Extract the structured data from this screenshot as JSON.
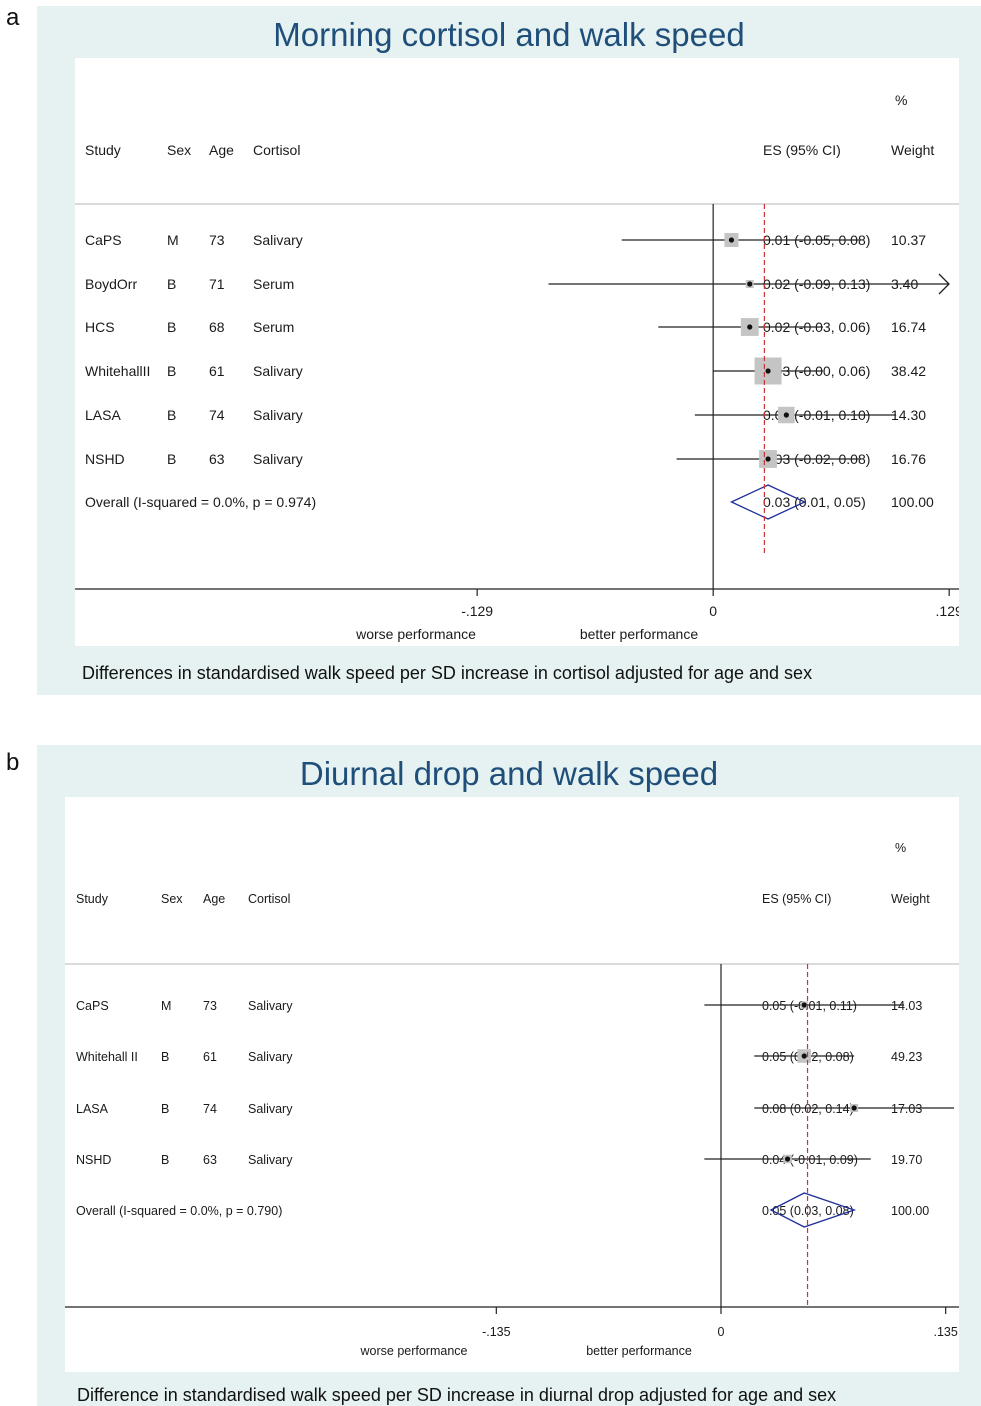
{
  "panels": [
    {
      "letter": "a",
      "title": "Morning cortisol and walk speed",
      "caption": "Differences in standardised walk speed per SD increase in cortisol adjusted for age and sex"
    },
    {
      "letter": "b",
      "title": "Diurnal drop and walk speed",
      "caption": "Difference in standardised walk speed per SD increase in diurnal drop adjusted for age and sex"
    }
  ],
  "chart_data": [
    {
      "type": "forest",
      "title": "Morning cortisol and walk speed",
      "headers": {
        "study": "Study",
        "sex": "Sex",
        "age": "Age",
        "cortisol": "Cortisol",
        "es": "ES (95% CI)",
        "pct": "%",
        "weight": "Weight"
      },
      "rows": [
        {
          "study": "CaPS",
          "sex": "M",
          "age": "73",
          "cortisol": "Salivary",
          "es": 0.01,
          "lo": -0.05,
          "hi": 0.08,
          "weight": 10.37,
          "es_text": "0.01 (-0.05, 0.08)",
          "weight_text": "10.37"
        },
        {
          "study": "BoydOrr",
          "sex": "B",
          "age": "71",
          "cortisol": "Serum",
          "es": 0.02,
          "lo": -0.09,
          "hi": 0.13,
          "weight": 3.4,
          "es_text": "0.02 (-0.09, 0.13)",
          "weight_text": "3.40"
        },
        {
          "study": "HCS",
          "sex": "B",
          "age": "68",
          "cortisol": "Serum",
          "es": 0.02,
          "lo": -0.03,
          "hi": 0.06,
          "weight": 16.74,
          "es_text": "0.02 (-0.03, 0.06)",
          "weight_text": "16.74"
        },
        {
          "study": "WhitehallII",
          "sex": "B",
          "age": "61",
          "cortisol": "Salivary",
          "es": 0.03,
          "lo": -0.0,
          "hi": 0.06,
          "weight": 38.42,
          "es_text": "0.03 (-0.00, 0.06)",
          "weight_text": "38.42"
        },
        {
          "study": "LASA",
          "sex": "B",
          "age": "74",
          "cortisol": "Salivary",
          "es": 0.04,
          "lo": -0.01,
          "hi": 0.1,
          "weight": 14.3,
          "es_text": "0.04 (-0.01, 0.10)",
          "weight_text": "14.30"
        },
        {
          "study": "NSHD",
          "sex": "B",
          "age": "63",
          "cortisol": "Salivary",
          "es": 0.03,
          "lo": -0.02,
          "hi": 0.08,
          "weight": 16.76,
          "es_text": "0.03 (-0.02, 0.08)",
          "weight_text": "16.76"
        }
      ],
      "overall": {
        "label": "Overall  (I-squared = 0.0%, p = 0.974)",
        "es": 0.03,
        "lo": 0.01,
        "hi": 0.05,
        "es_text": "0.03 (0.01, 0.05)",
        "weight_text": "100.00"
      },
      "x_ticks": [
        {
          "value": -0.129,
          "label": "-.129"
        },
        {
          "value": 0,
          "label": "0"
        },
        {
          "value": 0.129,
          "label": ".129"
        }
      ],
      "xlim": [
        -0.263,
        0.13
      ],
      "clipped_upper": [
        false,
        true,
        false,
        false,
        false,
        false
      ],
      "xlabel_left": "worse performance",
      "xlabel_right": "better performance",
      "reference_line": 0.028
    },
    {
      "type": "forest",
      "title": "Diurnal drop and walk speed",
      "headers": {
        "study": "Study",
        "sex": "Sex",
        "age": "Age",
        "cortisol": "Cortisol",
        "es": "ES (95% CI)",
        "pct": "%",
        "weight": "Weight"
      },
      "rows": [
        {
          "study": "CaPS",
          "sex": "M",
          "age": "73",
          "cortisol": "Salivary",
          "es": 0.05,
          "lo": -0.01,
          "hi": 0.11,
          "weight": 14.03,
          "es_text": "0.05 (-0.01, 0.11)",
          "weight_text": "14.03"
        },
        {
          "study": "Whitehall II",
          "sex": "B",
          "age": "61",
          "cortisol": "Salivary",
          "es": 0.05,
          "lo": 0.02,
          "hi": 0.08,
          "weight": 49.23,
          "es_text": "0.05 (0.02, 0.08)",
          "weight_text": "49.23"
        },
        {
          "study": "LASA",
          "sex": "B",
          "age": "74",
          "cortisol": "Salivary",
          "es": 0.08,
          "lo": 0.02,
          "hi": 0.14,
          "weight": 17.03,
          "es_text": "0.08 (0.02, 0.14)",
          "weight_text": "17.03"
        },
        {
          "study": "NSHD",
          "sex": "B",
          "age": "63",
          "cortisol": "Salivary",
          "es": 0.04,
          "lo": -0.01,
          "hi": 0.09,
          "weight": 19.7,
          "es_text": "0.04 (-0.01, 0.09)",
          "weight_text": "19.70"
        }
      ],
      "overall": {
        "label": "Overall  (I-squared = 0.0%, p = 0.790)",
        "es": 0.05,
        "lo": 0.03,
        "hi": 0.08,
        "es_text": "0.05 (0.03, 0.08)",
        "weight_text": "100.00"
      },
      "x_ticks": [
        {
          "value": -0.135,
          "label": "-.135"
        },
        {
          "value": 0,
          "label": "0"
        },
        {
          "value": 0.135,
          "label": ".135"
        }
      ],
      "xlim": [
        -0.28,
        0.14
      ],
      "clipped_upper": [
        false,
        false,
        false,
        false
      ],
      "xlabel_left": "worse performance",
      "xlabel_right": "better performance",
      "reference_line": 0.052
    }
  ],
  "colors": {
    "panel_bg": "#e5f2f1",
    "title": "#1e4e79",
    "overall_diamond": "#1f2f9a",
    "reference_line": "#cc3333",
    "weight_box": "#c4c4c4"
  }
}
